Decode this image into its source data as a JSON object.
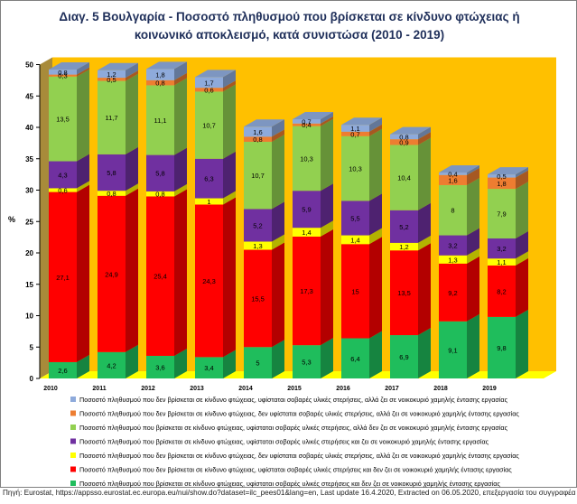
{
  "title_line1": "Διαγ. 5  Βουλγαρία - Ποσοστό πληθυσμού που βρίσκεται σε κίνδυνο φτώχειας ή",
  "title_line2": "κοινωνικό αποκλεισμό, κατά συνιστώσα (2010 - 2019)",
  "source": "Πηγή: Eurostat, https://appsso.eurostat.ec.europa.eu/nui/show.do?dataset=ilc_pees01&lang=en, Last update 16.4.2020, Extracted on 06.05.2020, επεξεργασία του συγγραφέα",
  "colors": {
    "back_wall": "#ffc000",
    "floor": "#ffff00",
    "left_wall": "#a88b3a"
  },
  "chart_data": {
    "type": "bar",
    "stacked": true,
    "three_d": true,
    "title": "Διαγ. 5  Βουλγαρία - Ποσοστό πληθυσμού που βρίσκεται σε κίνδυνο φτώχειας ή κοινωνικό αποκλεισμό, κατά συνιστώσα (2010 - 2019)",
    "ylabel": "%",
    "ylim": [
      0,
      50
    ],
    "yticks": [
      "0",
      "5",
      "10",
      "15",
      "20",
      "25",
      "30",
      "35",
      "40",
      "45",
      "50"
    ],
    "categories": [
      "2010",
      "2011",
      "2012",
      "2013",
      "2014",
      "2015",
      "2016",
      "2017",
      "2018",
      "2019"
    ],
    "series": [
      {
        "name": "Ποσοστό πληθυσμού που βρίσκεται σε κίνδυνο φτώχειας, υφίσταται σοβαρές υλικές στερήσεις και δεν ζει σε νοικοκυριό χαμηλής έντασης εργασίας",
        "color": "#1fbd5c",
        "values": [
          2.6,
          4.2,
          3.6,
          3.4,
          5,
          5.3,
          6.4,
          6.9,
          9.1,
          9.8
        ],
        "labels": [
          "2,6",
          "4,2",
          "3,6",
          "3,4",
          "5",
          "5,3",
          "6,4",
          "6,9",
          "9,1",
          "9,8"
        ]
      },
      {
        "name": "Ποσοστό πληθυσμού που δεν βρίσκεται σε κίνδυνο φτώχειας, υφίσταται σοβαρές υλικές στερήσεις και δεν ζει σε νοικοκυριό χαμηλής έντασης εργασίας",
        "color": "#ff0000",
        "values": [
          27.1,
          24.9,
          25.4,
          24.3,
          15.5,
          17.3,
          15,
          13.5,
          9.2,
          8.2
        ],
        "labels": [
          "27,1",
          "24,9",
          "25,4",
          "24,3",
          "15,5",
          "17,3",
          "15",
          "13,5",
          "9,2",
          "8,2"
        ]
      },
      {
        "name": "Ποσοστό πληθυσμού που δεν βρίσκεται σε κίνδυνο φτώχειας, δεν υφίσταται  σοβαρές υλικές στερήσεις, αλλά ζει σε νοικοκυριό χαμηλής έντασης εργασίας",
        "color": "#ffff00",
        "values": [
          0.6,
          0.8,
          0.8,
          1,
          1.3,
          1.4,
          1.4,
          1.2,
          1.3,
          1.1
        ],
        "labels": [
          "0,6",
          "0,8",
          "0,8",
          "1",
          "1,3",
          "1,4",
          "1,4",
          "1,2",
          "1,3",
          "1,1"
        ]
      },
      {
        "name": "Ποσοστό πληθυσμού που βρίσκεται σε κίνδυνο φτώχειας, υφίσταται σοβαρές υλικές στερήσεις και ζει σε νοικοκυριό χαμηλής έντασης εργασίας",
        "color": "#7030a0",
        "values": [
          4.3,
          5.8,
          5.8,
          6.3,
          5.2,
          5.9,
          5.5,
          5.2,
          3.2,
          3.2
        ],
        "labels": [
          "4,3",
          "5,8",
          "5,8",
          "6,3",
          "5,2",
          "5,9",
          "5,5",
          "5,2",
          "3,2",
          "3,2"
        ]
      },
      {
        "name": "Ποσοστό πληθυσμού που βρίσκεται σε κίνδυνο φτώχειας, υφίσταται σοβαρές υλικές στερήσεις, αλλά δεν ζει σε νοικοκυριό χαμηλής έντασης εργασίας",
        "color": "#92d050",
        "values": [
          13.5,
          11.7,
          11.1,
          10.7,
          10.7,
          10.3,
          10.3,
          10.4,
          8,
          7.9
        ],
        "labels": [
          "13,5",
          "11,7",
          "11,1",
          "10,7",
          "10,7",
          "10,3",
          "10,3",
          "10,4",
          "8",
          "7,9"
        ]
      },
      {
        "name": "Ποσοστό πληθυσμού που δεν βρίσκεται σε κίνδυνο φτώχειας, δεν υφίσταται σοβαρές υλικές στερήσεις, αλλά ζει σε νοικοκυριό χαμηλής έντασης εργασίας",
        "color": "#ed7d31",
        "values": [
          0.3,
          0.5,
          0.8,
          0.6,
          0.8,
          0.4,
          0.7,
          0.9,
          1.6,
          1.8
        ],
        "labels": [
          "0,3",
          "0,5",
          "0,8",
          "0,6",
          "0,8",
          "0,4",
          "0,7",
          "0,9",
          "1,6",
          "1,8"
        ]
      },
      {
        "name": "Ποσοστό πληθυσμού που δεν βρίσκεται σε κίνδυνο φτώχειας, υφίσταται σοβαρές υλικές στερήσεις, αλλά ζει σε νοικοκυριό χαμηλής έντασης εργασίας",
        "color": "#8eaadb",
        "values": [
          0.8,
          1.2,
          1.8,
          1.7,
          1.6,
          0.7,
          1.1,
          0.8,
          0.4,
          0.5
        ],
        "labels": [
          "0,8",
          "1,2",
          "1,8",
          "1,7",
          "1,6",
          "0,7",
          "1,1",
          "0,8",
          "0,4",
          "0,5"
        ]
      }
    ],
    "legend_order": [
      6,
      5,
      4,
      3,
      2,
      1,
      0
    ],
    "legend_position": "bottom"
  }
}
